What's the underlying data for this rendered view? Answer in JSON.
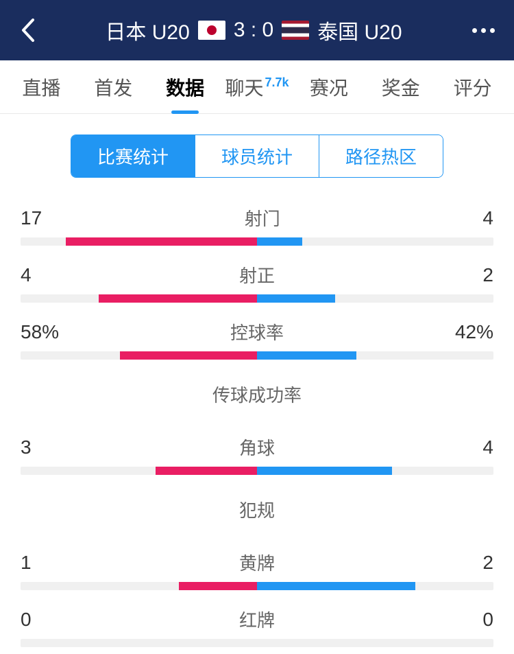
{
  "header": {
    "team_home": "日本 U20",
    "team_away": "泰国 U20",
    "score": "3 : 0"
  },
  "tabs": [
    {
      "label": "直播",
      "active": false
    },
    {
      "label": "首发",
      "active": false
    },
    {
      "label": "数据",
      "active": true
    },
    {
      "label": "聊天",
      "badge": "7.7k",
      "active": false
    },
    {
      "label": "赛况",
      "active": false
    },
    {
      "label": "奖金",
      "active": false
    },
    {
      "label": "评分",
      "active": false
    }
  ],
  "sub_tabs": [
    {
      "label": "比赛统计",
      "active": true
    },
    {
      "label": "球员统计",
      "active": false
    },
    {
      "label": "路径热区",
      "active": false
    }
  ],
  "stats": [
    {
      "label": "射门",
      "home": "17",
      "away": "4",
      "home_pct": 81,
      "away_pct": 19,
      "show_bar": true
    },
    {
      "label": "射正",
      "home": "4",
      "away": "2",
      "home_pct": 67,
      "away_pct": 33,
      "show_bar": true
    },
    {
      "label": "控球率",
      "home": "58%",
      "away": "42%",
      "home_pct": 58,
      "away_pct": 42,
      "show_bar": true
    },
    {
      "label": "传球成功率",
      "label_only": true
    },
    {
      "label": "角球",
      "home": "3",
      "away": "4",
      "home_pct": 43,
      "away_pct": 57,
      "show_bar": true
    },
    {
      "label": "犯规",
      "label_only": true
    },
    {
      "label": "黄牌",
      "home": "1",
      "away": "2",
      "home_pct": 33,
      "away_pct": 67,
      "show_bar": true
    },
    {
      "label": "红牌",
      "home": "0",
      "away": "0",
      "home_pct": 0,
      "away_pct": 0,
      "show_bar": true
    }
  ],
  "colors": {
    "header_bg": "#1a2d5e",
    "accent": "#2196f3",
    "home_bar": "#e91e63",
    "away_bar": "#2196f3",
    "bar_bg": "#f0f0f0"
  }
}
